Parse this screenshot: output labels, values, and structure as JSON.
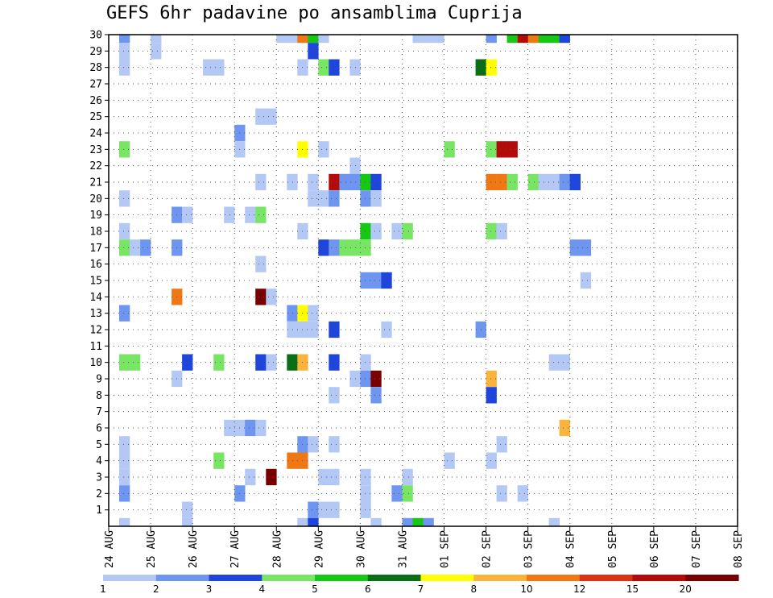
{
  "chart_data": {
    "type": "heatmap",
    "title": "GEFS 6hr padavine po ansamblima Cuprija",
    "xlabel": "",
    "ylabel": "",
    "y_ticks": [
      1,
      2,
      3,
      4,
      5,
      6,
      7,
      8,
      9,
      10,
      11,
      12,
      13,
      14,
      15,
      16,
      17,
      18,
      19,
      20,
      21,
      22,
      23,
      24,
      25,
      26,
      27,
      28,
      29,
      30
    ],
    "x_ticks": [
      "24 AUG",
      "25 AUG",
      "26 AUG",
      "27 AUG",
      "28 AUG",
      "29 AUG",
      "30 AUG",
      "31 AUG",
      "01 SEP",
      "02 SEP",
      "03 SEP",
      "04 SEP",
      "05 SEP",
      "06 SEP",
      "07 SEP",
      "08 SEP"
    ],
    "xlim": [
      0,
      60
    ],
    "ylim": [
      0,
      30
    ],
    "grid": true,
    "legend_placement": "bottom",
    "colorbar": {
      "labels": [
        "1",
        "2",
        "3",
        "4",
        "5",
        "6",
        "7",
        "8",
        "10",
        "12",
        "15",
        "20"
      ],
      "colors": [
        "#b4c8f5",
        "#6e96f0",
        "#1e46dc",
        "#78e664",
        "#14c814",
        "#0a6e14",
        "#ffff00",
        "#fab43c",
        "#f07814",
        "#dc3214",
        "#b40a0a",
        "#780000"
      ]
    },
    "cells": [
      [
        1,
        30,
        2
      ],
      [
        4,
        30,
        1
      ],
      [
        16,
        30,
        1
      ],
      [
        17,
        30,
        1
      ],
      [
        18,
        30,
        10
      ],
      [
        19,
        30,
        5
      ],
      [
        20,
        30,
        1
      ],
      [
        29,
        30,
        1
      ],
      [
        30,
        30,
        1
      ],
      [
        31,
        30,
        1
      ],
      [
        36,
        30,
        2
      ],
      [
        38,
        30,
        5
      ],
      [
        39,
        30,
        15
      ],
      [
        40,
        30,
        10
      ],
      [
        41,
        30,
        5
      ],
      [
        42,
        30,
        5
      ],
      [
        43,
        30,
        3
      ],
      [
        1,
        29,
        1
      ],
      [
        4,
        29,
        1
      ],
      [
        19,
        29,
        3
      ],
      [
        1,
        28,
        1
      ],
      [
        9,
        28,
        1
      ],
      [
        10,
        28,
        1
      ],
      [
        18,
        28,
        1
      ],
      [
        20,
        28,
        4
      ],
      [
        21,
        28,
        3
      ],
      [
        23,
        28,
        1
      ],
      [
        35,
        28,
        6
      ],
      [
        36,
        28,
        7
      ],
      [
        12,
        24,
        2
      ],
      [
        14,
        25,
        1
      ],
      [
        15,
        25,
        1
      ],
      [
        1,
        23,
        4
      ],
      [
        12,
        23,
        1
      ],
      [
        18,
        23,
        7
      ],
      [
        20,
        23,
        1
      ],
      [
        32,
        23,
        4
      ],
      [
        36,
        23,
        4
      ],
      [
        37,
        23,
        15
      ],
      [
        38,
        23,
        15
      ],
      [
        23,
        22,
        1
      ],
      [
        14,
        21,
        1
      ],
      [
        17,
        21,
        1
      ],
      [
        19,
        21,
        1
      ],
      [
        21,
        21,
        15
      ],
      [
        22,
        21,
        2
      ],
      [
        23,
        21,
        2
      ],
      [
        24,
        21,
        5
      ],
      [
        25,
        21,
        3
      ],
      [
        36,
        21,
        10
      ],
      [
        37,
        21,
        10
      ],
      [
        38,
        21,
        4
      ],
      [
        40,
        21,
        4
      ],
      [
        41,
        21,
        1
      ],
      [
        42,
        21,
        1
      ],
      [
        43,
        21,
        2
      ],
      [
        44,
        21,
        3
      ],
      [
        1,
        20,
        1
      ],
      [
        19,
        20,
        1
      ],
      [
        20,
        20,
        1
      ],
      [
        21,
        20,
        2
      ],
      [
        24,
        20,
        2
      ],
      [
        25,
        20,
        1
      ],
      [
        6,
        19,
        2
      ],
      [
        7,
        19,
        1
      ],
      [
        11,
        19,
        1
      ],
      [
        13,
        19,
        1
      ],
      [
        14,
        19,
        4
      ],
      [
        1,
        18,
        1
      ],
      [
        18,
        18,
        1
      ],
      [
        24,
        18,
        5
      ],
      [
        25,
        18,
        1
      ],
      [
        27,
        18,
        1
      ],
      [
        28,
        18,
        4
      ],
      [
        36,
        18,
        4
      ],
      [
        37,
        18,
        1
      ],
      [
        1,
        17,
        4
      ],
      [
        2,
        17,
        1
      ],
      [
        3,
        17,
        2
      ],
      [
        6,
        17,
        2
      ],
      [
        20,
        17,
        3
      ],
      [
        21,
        17,
        2
      ],
      [
        22,
        17,
        4
      ],
      [
        23,
        17,
        4
      ],
      [
        24,
        17,
        4
      ],
      [
        44,
        17,
        2
      ],
      [
        45,
        17,
        2
      ],
      [
        14,
        16,
        1
      ],
      [
        24,
        15,
        2
      ],
      [
        25,
        15,
        2
      ],
      [
        26,
        15,
        3
      ],
      [
        45,
        15,
        1
      ],
      [
        6,
        14,
        10
      ],
      [
        14,
        14,
        20
      ],
      [
        15,
        14,
        1
      ],
      [
        1,
        13,
        2
      ],
      [
        17,
        13,
        2
      ],
      [
        18,
        13,
        7
      ],
      [
        19,
        13,
        1
      ],
      [
        17,
        12,
        1
      ],
      [
        18,
        12,
        1
      ],
      [
        19,
        12,
        1
      ],
      [
        21,
        12,
        3
      ],
      [
        26,
        12,
        1
      ],
      [
        35,
        12,
        2
      ],
      [
        1,
        10,
        4
      ],
      [
        2,
        10,
        4
      ],
      [
        7,
        10,
        3
      ],
      [
        10,
        10,
        4
      ],
      [
        14,
        10,
        3
      ],
      [
        15,
        10,
        1
      ],
      [
        17,
        10,
        6
      ],
      [
        18,
        10,
        8
      ],
      [
        21,
        10,
        3
      ],
      [
        24,
        10,
        1
      ],
      [
        42,
        10,
        1
      ],
      [
        43,
        10,
        1
      ],
      [
        6,
        9,
        1
      ],
      [
        23,
        9,
        1
      ],
      [
        24,
        9,
        2
      ],
      [
        25,
        9,
        20
      ],
      [
        36,
        9,
        8
      ],
      [
        21,
        8,
        1
      ],
      [
        25,
        8,
        2
      ],
      [
        36,
        8,
        3
      ],
      [
        43,
        6,
        8
      ],
      [
        11,
        6,
        1
      ],
      [
        12,
        6,
        1
      ],
      [
        13,
        6,
        2
      ],
      [
        14,
        6,
        1
      ],
      [
        1,
        5,
        1
      ],
      [
        18,
        5,
        2
      ],
      [
        19,
        5,
        1
      ],
      [
        21,
        5,
        1
      ],
      [
        37,
        5,
        1
      ],
      [
        1,
        4,
        1
      ],
      [
        10,
        4,
        4
      ],
      [
        17,
        4,
        10
      ],
      [
        18,
        4,
        10
      ],
      [
        32,
        4,
        1
      ],
      [
        36,
        4,
        1
      ],
      [
        1,
        3,
        1
      ],
      [
        13,
        3,
        1
      ],
      [
        15,
        3,
        20
      ],
      [
        20,
        3,
        1
      ],
      [
        21,
        3,
        1
      ],
      [
        24,
        3,
        1
      ],
      [
        28,
        3,
        1
      ],
      [
        1,
        2,
        2
      ],
      [
        12,
        2,
        2
      ],
      [
        24,
        2,
        1
      ],
      [
        27,
        2,
        2
      ],
      [
        28,
        2,
        4
      ],
      [
        37,
        2,
        1
      ],
      [
        39,
        2,
        1
      ],
      [
        7,
        1,
        1
      ],
      [
        19,
        1,
        2
      ],
      [
        20,
        1,
        1
      ],
      [
        21,
        1,
        1
      ],
      [
        24,
        1,
        1
      ],
      [
        1,
        0,
        1
      ],
      [
        7,
        0,
        1
      ],
      [
        18,
        0,
        1
      ],
      [
        19,
        0,
        3
      ],
      [
        25,
        0,
        1
      ],
      [
        28,
        0,
        2
      ],
      [
        29,
        0,
        5
      ],
      [
        30,
        0,
        2
      ],
      [
        42,
        0,
        1
      ]
    ]
  }
}
